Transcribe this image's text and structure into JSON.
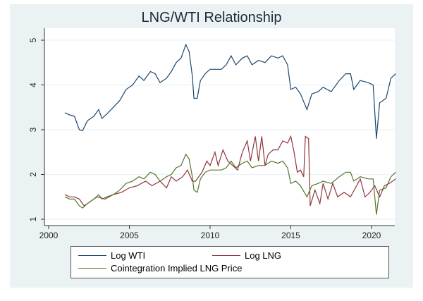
{
  "chart_data": {
    "type": "line",
    "title": "LNG/WTI Relationship",
    "xlabel": "",
    "ylabel": "",
    "xlim": [
      1999.9,
      2021.7
    ],
    "ylim": [
      0.8,
      5.2
    ],
    "xticks": [
      2000,
      2005,
      2010,
      2015,
      2020
    ],
    "yticks": [
      1,
      2,
      3,
      4,
      5
    ],
    "grid": true,
    "legend_position": "bottom",
    "series": [
      {
        "name": "Log WTI",
        "color": "#1a476f",
        "points": [
          [
            2001.0,
            3.38
          ],
          [
            2001.3,
            3.33
          ],
          [
            2001.6,
            3.3
          ],
          [
            2001.9,
            3.0
          ],
          [
            2002.1,
            2.98
          ],
          [
            2002.4,
            3.2
          ],
          [
            2002.8,
            3.3
          ],
          [
            2003.1,
            3.45
          ],
          [
            2003.3,
            3.25
          ],
          [
            2003.6,
            3.35
          ],
          [
            2004.0,
            3.5
          ],
          [
            2004.4,
            3.65
          ],
          [
            2004.8,
            3.9
          ],
          [
            2005.2,
            4.0
          ],
          [
            2005.6,
            4.2
          ],
          [
            2005.9,
            4.1
          ],
          [
            2006.3,
            4.3
          ],
          [
            2006.6,
            4.25
          ],
          [
            2006.9,
            4.05
          ],
          [
            2007.3,
            4.15
          ],
          [
            2007.6,
            4.3
          ],
          [
            2007.9,
            4.5
          ],
          [
            2008.2,
            4.6
          ],
          [
            2008.5,
            4.9
          ],
          [
            2008.7,
            4.75
          ],
          [
            2008.9,
            4.2
          ],
          [
            2009.0,
            3.7
          ],
          [
            2009.2,
            3.7
          ],
          [
            2009.4,
            4.1
          ],
          [
            2009.7,
            4.25
          ],
          [
            2010.0,
            4.35
          ],
          [
            2010.4,
            4.35
          ],
          [
            2010.7,
            4.35
          ],
          [
            2011.0,
            4.45
          ],
          [
            2011.3,
            4.65
          ],
          [
            2011.6,
            4.45
          ],
          [
            2012.0,
            4.6
          ],
          [
            2012.3,
            4.65
          ],
          [
            2012.6,
            4.45
          ],
          [
            2013.0,
            4.55
          ],
          [
            2013.4,
            4.5
          ],
          [
            2013.8,
            4.65
          ],
          [
            2014.2,
            4.6
          ],
          [
            2014.5,
            4.65
          ],
          [
            2014.8,
            4.45
          ],
          [
            2015.0,
            3.9
          ],
          [
            2015.3,
            3.95
          ],
          [
            2015.6,
            3.8
          ],
          [
            2016.0,
            3.45
          ],
          [
            2016.3,
            3.8
          ],
          [
            2016.7,
            3.85
          ],
          [
            2017.0,
            3.95
          ],
          [
            2017.5,
            3.85
          ],
          [
            2018.0,
            4.1
          ],
          [
            2018.4,
            4.25
          ],
          [
            2018.7,
            4.25
          ],
          [
            2018.9,
            3.9
          ],
          [
            2019.3,
            4.1
          ],
          [
            2019.8,
            4.05
          ],
          [
            2020.1,
            4.0
          ],
          [
            2020.3,
            2.8
          ],
          [
            2020.5,
            3.6
          ],
          [
            2020.9,
            3.7
          ],
          [
            2021.2,
            4.15
          ],
          [
            2021.5,
            4.25
          ]
        ]
      },
      {
        "name": "Log LNG",
        "color": "#90353b",
        "points": [
          [
            2001.0,
            1.55
          ],
          [
            2001.3,
            1.5
          ],
          [
            2001.6,
            1.5
          ],
          [
            2001.9,
            1.45
          ],
          [
            2002.2,
            1.3
          ],
          [
            2002.6,
            1.4
          ],
          [
            2003.0,
            1.5
          ],
          [
            2003.5,
            1.45
          ],
          [
            2004.0,
            1.55
          ],
          [
            2004.5,
            1.6
          ],
          [
            2005.0,
            1.7
          ],
          [
            2005.5,
            1.75
          ],
          [
            2006.0,
            1.85
          ],
          [
            2006.4,
            1.75
          ],
          [
            2006.9,
            1.85
          ],
          [
            2007.3,
            1.7
          ],
          [
            2007.6,
            1.95
          ],
          [
            2007.9,
            1.85
          ],
          [
            2008.3,
            1.95
          ],
          [
            2008.6,
            2.1
          ],
          [
            2008.9,
            1.85
          ],
          [
            2009.1,
            1.85
          ],
          [
            2009.5,
            2.05
          ],
          [
            2009.8,
            2.3
          ],
          [
            2010.0,
            2.2
          ],
          [
            2010.3,
            2.5
          ],
          [
            2010.5,
            2.2
          ],
          [
            2010.8,
            2.55
          ],
          [
            2011.1,
            2.3
          ],
          [
            2011.4,
            2.2
          ],
          [
            2011.7,
            2.1
          ],
          [
            2012.0,
            2.5
          ],
          [
            2012.3,
            2.75
          ],
          [
            2012.5,
            2.3
          ],
          [
            2012.8,
            2.85
          ],
          [
            2013.0,
            2.3
          ],
          [
            2013.2,
            2.85
          ],
          [
            2013.4,
            2.2
          ],
          [
            2013.6,
            2.45
          ],
          [
            2013.9,
            2.55
          ],
          [
            2014.2,
            2.55
          ],
          [
            2014.5,
            2.75
          ],
          [
            2014.8,
            2.7
          ],
          [
            2015.0,
            2.85
          ],
          [
            2015.2,
            2.5
          ],
          [
            2015.4,
            2.05
          ],
          [
            2015.6,
            2.1
          ],
          [
            2015.8,
            1.95
          ],
          [
            2015.9,
            2.85
          ],
          [
            2016.1,
            2.8
          ],
          [
            2016.2,
            1.3
          ],
          [
            2016.5,
            1.65
          ],
          [
            2016.8,
            1.35
          ],
          [
            2017.0,
            1.8
          ],
          [
            2017.3,
            1.45
          ],
          [
            2017.6,
            1.8
          ],
          [
            2017.9,
            1.5
          ],
          [
            2018.3,
            1.6
          ],
          [
            2018.7,
            1.5
          ],
          [
            2019.0,
            1.7
          ],
          [
            2019.3,
            1.9
          ],
          [
            2019.6,
            1.5
          ],
          [
            2019.9,
            1.6
          ],
          [
            2020.2,
            1.75
          ],
          [
            2020.5,
            1.5
          ],
          [
            2020.8,
            1.75
          ],
          [
            2021.1,
            1.8
          ],
          [
            2021.5,
            1.9
          ]
        ]
      },
      {
        "name": "Cointegration Implied LNG Price",
        "color": "#55752f",
        "points": [
          [
            2001.0,
            1.5
          ],
          [
            2001.3,
            1.45
          ],
          [
            2001.6,
            1.45
          ],
          [
            2001.9,
            1.3
          ],
          [
            2002.1,
            1.25
          ],
          [
            2002.4,
            1.35
          ],
          [
            2002.8,
            1.45
          ],
          [
            2003.1,
            1.55
          ],
          [
            2003.3,
            1.45
          ],
          [
            2003.6,
            1.5
          ],
          [
            2004.0,
            1.55
          ],
          [
            2004.4,
            1.65
          ],
          [
            2004.8,
            1.8
          ],
          [
            2005.2,
            1.85
          ],
          [
            2005.6,
            1.95
          ],
          [
            2005.9,
            1.9
          ],
          [
            2006.3,
            2.05
          ],
          [
            2006.6,
            2.0
          ],
          [
            2006.9,
            1.85
          ],
          [
            2007.3,
            1.95
          ],
          [
            2007.6,
            2.0
          ],
          [
            2007.9,
            2.15
          ],
          [
            2008.2,
            2.2
          ],
          [
            2008.5,
            2.45
          ],
          [
            2008.7,
            2.35
          ],
          [
            2008.9,
            1.95
          ],
          [
            2009.0,
            1.65
          ],
          [
            2009.2,
            1.6
          ],
          [
            2009.4,
            1.9
          ],
          [
            2009.7,
            2.05
          ],
          [
            2010.0,
            2.1
          ],
          [
            2010.4,
            2.1
          ],
          [
            2010.7,
            2.1
          ],
          [
            2011.0,
            2.15
          ],
          [
            2011.3,
            2.3
          ],
          [
            2011.6,
            2.15
          ],
          [
            2012.0,
            2.25
          ],
          [
            2012.3,
            2.3
          ],
          [
            2012.6,
            2.15
          ],
          [
            2013.0,
            2.2
          ],
          [
            2013.4,
            2.2
          ],
          [
            2013.8,
            2.3
          ],
          [
            2014.2,
            2.25
          ],
          [
            2014.5,
            2.3
          ],
          [
            2014.8,
            2.15
          ],
          [
            2015.0,
            1.8
          ],
          [
            2015.3,
            1.85
          ],
          [
            2015.6,
            1.75
          ],
          [
            2016.0,
            1.5
          ],
          [
            2016.3,
            1.75
          ],
          [
            2016.7,
            1.8
          ],
          [
            2017.0,
            1.85
          ],
          [
            2017.5,
            1.8
          ],
          [
            2018.0,
            1.95
          ],
          [
            2018.4,
            2.05
          ],
          [
            2018.7,
            2.05
          ],
          [
            2018.9,
            1.85
          ],
          [
            2019.3,
            1.95
          ],
          [
            2019.8,
            1.9
          ],
          [
            2020.1,
            1.9
          ],
          [
            2020.3,
            1.1
          ],
          [
            2020.5,
            1.65
          ],
          [
            2020.9,
            1.7
          ],
          [
            2021.2,
            1.95
          ],
          [
            2021.5,
            2.05
          ]
        ]
      }
    ]
  }
}
